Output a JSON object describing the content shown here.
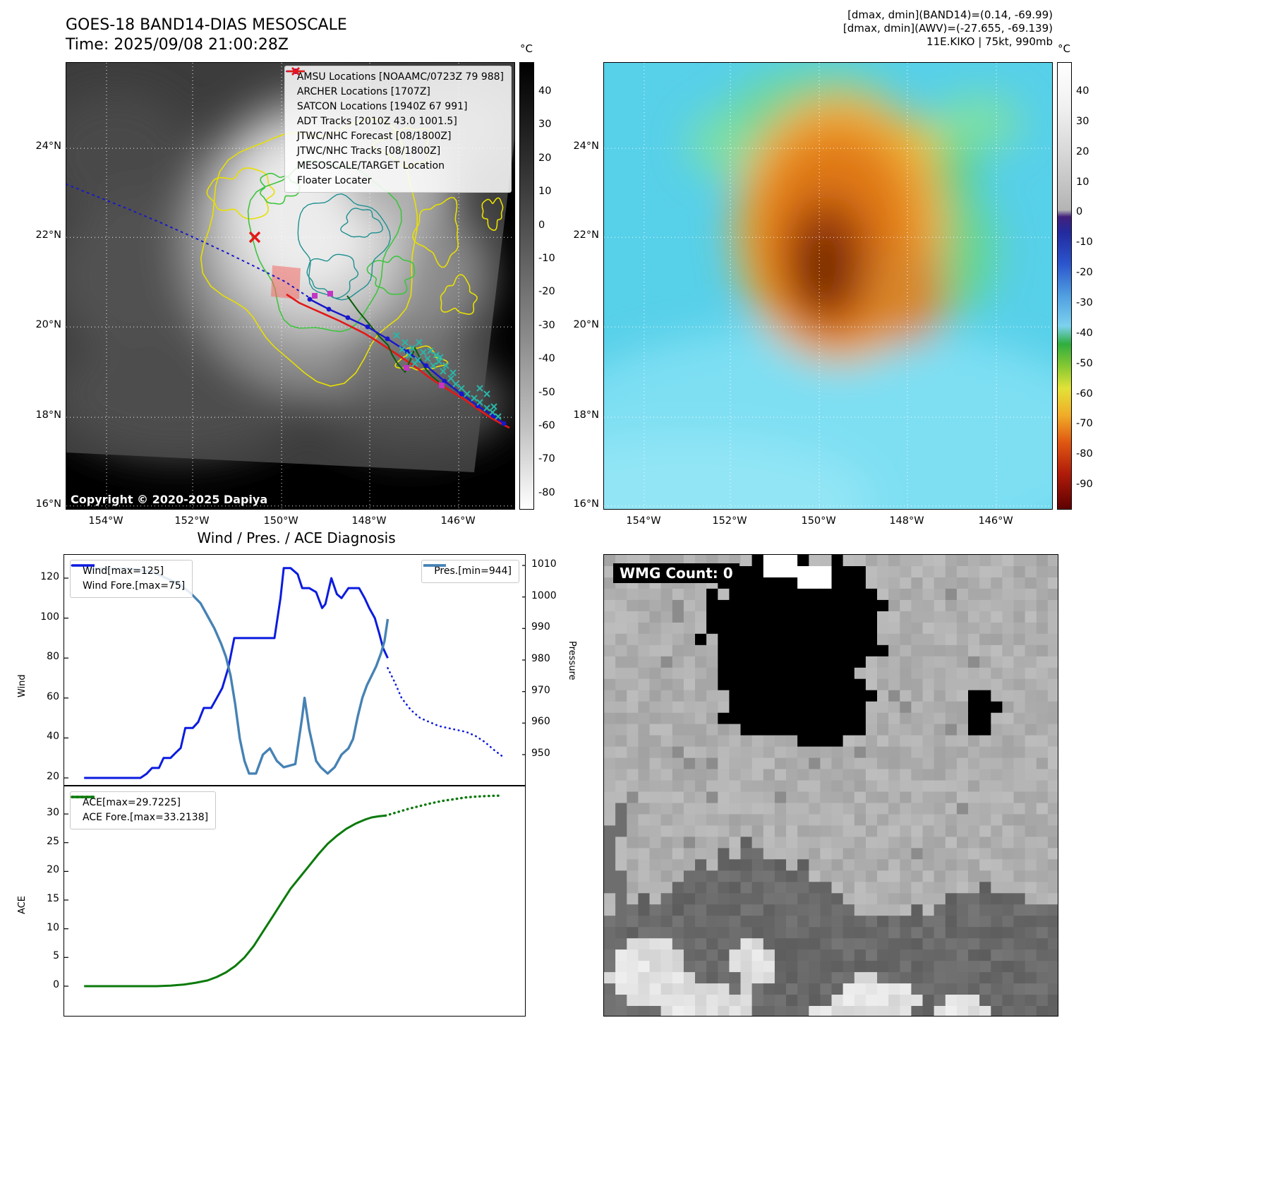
{
  "panels": {
    "goes": {
      "title": "GOES-18 BAND14-DIAS MESOSCALE",
      "subtitle": "Time: 2025/09/08 21:00:28Z",
      "copyright": "Copyright © 2020-2025 Dapiya",
      "colorbar": {
        "unit": "°C",
        "ticks": [
          40,
          30,
          20,
          10,
          0,
          -10,
          -20,
          -30,
          -40,
          -50,
          -60,
          -70,
          -80
        ]
      },
      "xticks": [
        "154°W",
        "152°W",
        "150°W",
        "148°W",
        "146°W"
      ],
      "yticks": [
        "24°N",
        "22°N",
        "20°N",
        "18°N",
        "16°N"
      ],
      "legend": [
        {
          "marker": "square-magenta",
          "label": "AMSU Locations [NOAAMC/0723Z 79 988]"
        },
        {
          "marker": "square-magenta",
          "label": "ARCHER Locations [1707Z]"
        },
        {
          "marker": "x-cyan",
          "label": "SATCON Locations [1940Z 67 991]"
        },
        {
          "marker": "line-green",
          "label": "ADT Tracks [2010Z 43.0 1001.5]"
        },
        {
          "marker": "dotted-blue",
          "label": "JTWC/NHC Forecast [08/1800Z]"
        },
        {
          "marker": "line-dot-blue",
          "label": "JTWC/NHC Tracks [08/1800Z]"
        },
        {
          "marker": "x-red",
          "label": "MESOSCALE/TARGET Location"
        },
        {
          "marker": "line-red",
          "label": "Floater Locater"
        }
      ]
    },
    "awv": {
      "header": [
        "[dmax, dmin](BAND14)=(0.14, -69.99)",
        "[dmax, dmin](AWV)=(-27.655, -69.139)",
        "11E.KIKO | 75kt, 990mb"
      ],
      "colorbar": {
        "unit": "°C",
        "ticks": [
          40,
          30,
          20,
          10,
          0,
          -10,
          -20,
          -30,
          -40,
          -50,
          -60,
          -70,
          -80,
          -90
        ]
      },
      "xticks": [
        "154°W",
        "152°W",
        "150°W",
        "148°W",
        "146°W"
      ],
      "yticks": [
        "24°N",
        "22°N",
        "20°N",
        "18°N",
        "16°N"
      ]
    },
    "diagnosis": {
      "title": "Wind / Pres. / ACE Diagnosis"
    },
    "wmg": {
      "label": "WMG Count: 0"
    }
  },
  "colors": {
    "wind": "#0b1bdf",
    "pressure": "#4682b4",
    "ace": "#0b7a0b",
    "track_red": "#e41818",
    "track_blue": "#1717cc",
    "track_green": "#0a5c0a",
    "contour_yellow": "#e8e000",
    "contour_green": "#3fc43f",
    "contour_teal": "#1f9090",
    "satcon_cyan": "#2ab5a8",
    "marker_magenta": "#c335c3"
  },
  "chart_data": [
    {
      "type": "line",
      "title": "Wind / Pres. / ACE Diagnosis",
      "panel": "wind_pressure",
      "ylabel_left": "Wind",
      "ylabel_right": "Pressure",
      "ylim_left": [
        15,
        132
      ],
      "ylim_right": [
        939,
        1014
      ],
      "yticks_left": [
        120,
        100,
        80,
        60,
        40,
        20
      ],
      "yticks_right": [
        1010,
        1000,
        990,
        980,
        970,
        960,
        950
      ],
      "grid": false,
      "series": [
        {
          "name": "Wind[max=125]",
          "axis": "left",
          "style": "solid",
          "color": "#0b1bdf",
          "width": 3,
          "legend_box": "left",
          "x": [
            0.043,
            0.165,
            0.178,
            0.19,
            0.205,
            0.215,
            0.23,
            0.243,
            0.252,
            0.262,
            0.278,
            0.29,
            0.302,
            0.318,
            0.33,
            0.342,
            0.355,
            0.368,
            0.41,
            0.455,
            0.468,
            0.475,
            0.49,
            0.505,
            0.515,
            0.53,
            0.545,
            0.558,
            0.565,
            0.578,
            0.59,
            0.6,
            0.615,
            0.638,
            0.65,
            0.66,
            0.672,
            0.682,
            0.69,
            0.7
          ],
          "y": [
            20,
            20,
            22,
            25,
            25,
            30,
            30,
            33,
            35,
            45,
            45,
            48,
            55,
            55,
            60,
            65,
            75,
            90,
            90,
            90,
            110,
            125,
            125,
            122,
            115,
            115,
            113,
            105,
            107,
            120,
            112,
            110,
            115,
            115,
            110,
            105,
            100,
            92,
            85,
            80
          ]
        },
        {
          "name": "Wind Fore.[max=75]",
          "axis": "left",
          "style": "dotted",
          "color": "#0b1bdf",
          "width": 2.6,
          "legend_box": "left",
          "x": [
            0.7,
            0.715,
            0.73,
            0.75,
            0.77,
            0.79,
            0.81,
            0.83,
            0.85,
            0.87,
            0.89,
            0.91,
            0.93,
            0.947
          ],
          "y": [
            75,
            68,
            60,
            54,
            50,
            48,
            46,
            45,
            44,
            43,
            41,
            38,
            34,
            31
          ]
        },
        {
          "name": "Pres.[min=944]",
          "axis": "right",
          "style": "solid",
          "color": "#4682b4",
          "width": 3.4,
          "legend_box": "right",
          "x": [
            0.043,
            0.14,
            0.19,
            0.22,
            0.25,
            0.275,
            0.295,
            0.31,
            0.325,
            0.34,
            0.35,
            0.36,
            0.37,
            0.38,
            0.39,
            0.4,
            0.415,
            0.43,
            0.445,
            0.46,
            0.475,
            0.5,
            0.515,
            0.52,
            0.53,
            0.545,
            0.555,
            0.57,
            0.585,
            0.6,
            0.615,
            0.625,
            0.635,
            0.645,
            0.655,
            0.665,
            0.675,
            0.685,
            0.693,
            0.7
          ],
          "y": [
            1009,
            1009,
            1008,
            1006,
            1004,
            1001,
            998,
            994,
            990,
            985,
            981,
            975,
            966,
            955,
            948,
            944,
            944,
            950,
            952,
            948,
            946,
            947,
            962,
            968,
            958,
            948,
            946,
            944,
            946,
            950,
            952,
            955,
            962,
            968,
            972,
            975,
            978,
            982,
            986,
            993
          ]
        }
      ]
    },
    {
      "type": "line",
      "panel": "ace",
      "ylabel_left": "ACE",
      "ylim_left": [
        -5,
        35
      ],
      "yticks_left": [
        30,
        25,
        20,
        15,
        10,
        5,
        0
      ],
      "grid": false,
      "series": [
        {
          "name": "ACE[max=29.7225]",
          "axis": "left",
          "style": "solid",
          "color": "#0b7a0b",
          "width": 3,
          "legend_box": "left",
          "x": [
            0.043,
            0.2,
            0.23,
            0.26,
            0.285,
            0.31,
            0.33,
            0.35,
            0.37,
            0.39,
            0.41,
            0.43,
            0.45,
            0.47,
            0.49,
            0.51,
            0.53,
            0.55,
            0.57,
            0.59,
            0.61,
            0.63,
            0.65,
            0.665,
            0.68,
            0.695
          ],
          "y": [
            0,
            0,
            0.1,
            0.3,
            0.6,
            1.0,
            1.6,
            2.4,
            3.5,
            5,
            7,
            9.5,
            12,
            14.5,
            17,
            19,
            21,
            23,
            24.8,
            26.2,
            27.4,
            28.3,
            29.0,
            29.4,
            29.6,
            29.72
          ]
        },
        {
          "name": "ACE Fore.[max=33.2138]",
          "axis": "left",
          "style": "dotted",
          "color": "#0b7a0b",
          "width": 3.4,
          "legend_box": "left",
          "x": [
            0.695,
            0.72,
            0.745,
            0.77,
            0.795,
            0.82,
            0.845,
            0.87,
            0.895,
            0.92,
            0.947
          ],
          "y": [
            29.72,
            30.3,
            30.9,
            31.4,
            31.9,
            32.3,
            32.6,
            32.9,
            33.05,
            33.15,
            33.21
          ]
        }
      ]
    }
  ]
}
